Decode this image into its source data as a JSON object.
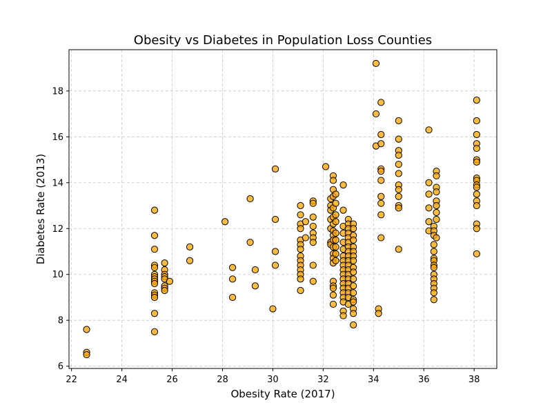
{
  "chart_data": {
    "type": "scatter",
    "title": "Obesity vs Diabetes in Population Loss Counties",
    "xlabel": "Obesity Rate (2017)",
    "ylabel": "Diabetes Rate (2013)",
    "xlim": [
      21.9,
      38.9
    ],
    "ylim": [
      5.9,
      19.8
    ],
    "xticks": [
      22,
      24,
      26,
      28,
      30,
      32,
      34,
      36,
      38
    ],
    "yticks": [
      6,
      8,
      10,
      12,
      14,
      16,
      18
    ],
    "grid": true,
    "marker_color": "#ffa500",
    "marker_edge": "#000000",
    "points": [
      [
        22.6,
        7.6
      ],
      [
        22.6,
        6.6
      ],
      [
        22.6,
        6.5
      ],
      [
        25.3,
        12.8
      ],
      [
        25.3,
        11.7
      ],
      [
        25.3,
        11.1
      ],
      [
        25.3,
        10.4
      ],
      [
        25.3,
        10.3
      ],
      [
        25.3,
        10.0
      ],
      [
        25.3,
        9.9
      ],
      [
        25.3,
        9.8
      ],
      [
        25.3,
        9.7
      ],
      [
        25.3,
        9.6
      ],
      [
        25.3,
        9.2
      ],
      [
        25.3,
        9.1
      ],
      [
        25.3,
        9.0
      ],
      [
        25.3,
        8.3
      ],
      [
        25.3,
        7.5
      ],
      [
        25.7,
        10.5
      ],
      [
        25.7,
        10.2
      ],
      [
        25.7,
        10.0
      ],
      [
        25.7,
        9.9
      ],
      [
        25.7,
        9.8
      ],
      [
        25.7,
        9.5
      ],
      [
        25.7,
        9.4
      ],
      [
        25.7,
        9.3
      ],
      [
        25.9,
        9.7
      ],
      [
        26.7,
        11.2
      ],
      [
        26.7,
        10.6
      ],
      [
        28.1,
        12.3
      ],
      [
        28.4,
        10.3
      ],
      [
        28.4,
        9.8
      ],
      [
        28.4,
        9.0
      ],
      [
        29.1,
        13.3
      ],
      [
        29.1,
        11.4
      ],
      [
        29.3,
        10.2
      ],
      [
        29.3,
        9.5
      ],
      [
        30.0,
        8.5
      ],
      [
        30.1,
        14.6
      ],
      [
        30.1,
        12.4
      ],
      [
        30.1,
        11.0
      ],
      [
        30.1,
        10.4
      ],
      [
        31.1,
        13.0
      ],
      [
        31.1,
        12.6
      ],
      [
        31.1,
        12.2
      ],
      [
        31.1,
        12.0
      ],
      [
        31.1,
        11.5
      ],
      [
        31.1,
        11.3
      ],
      [
        31.1,
        11.1
      ],
      [
        31.1,
        10.8
      ],
      [
        31.1,
        10.6
      ],
      [
        31.1,
        10.4
      ],
      [
        31.1,
        10.2
      ],
      [
        31.1,
        10.0
      ],
      [
        31.1,
        9.8
      ],
      [
        31.1,
        9.3
      ],
      [
        31.3,
        12.3
      ],
      [
        31.3,
        11.6
      ],
      [
        31.6,
        13.2
      ],
      [
        31.6,
        13.1
      ],
      [
        31.6,
        12.5
      ],
      [
        31.6,
        12.1
      ],
      [
        31.6,
        11.8
      ],
      [
        31.6,
        11.6
      ],
      [
        31.6,
        11.4
      ],
      [
        31.6,
        10.4
      ],
      [
        31.6,
        9.7
      ],
      [
        32.1,
        14.7
      ],
      [
        32.3,
        13.3
      ],
      [
        32.3,
        13.0
      ],
      [
        32.3,
        12.8
      ],
      [
        32.3,
        12.4
      ],
      [
        32.3,
        12.0
      ],
      [
        32.3,
        11.4
      ],
      [
        32.3,
        11.3
      ],
      [
        32.4,
        14.3
      ],
      [
        32.4,
        14.1
      ],
      [
        32.4,
        13.7
      ],
      [
        32.4,
        13.4
      ],
      [
        32.4,
        12.9
      ],
      [
        32.4,
        12.5
      ],
      [
        32.4,
        12.2
      ],
      [
        32.4,
        11.9
      ],
      [
        32.4,
        11.7
      ],
      [
        32.4,
        11.5
      ],
      [
        32.4,
        11.2
      ],
      [
        32.4,
        10.9
      ],
      [
        32.4,
        10.7
      ],
      [
        32.4,
        10.5
      ],
      [
        32.4,
        9.7
      ],
      [
        32.4,
        9.5
      ],
      [
        32.4,
        9.4
      ],
      [
        32.4,
        9.1
      ],
      [
        32.4,
        8.7
      ],
      [
        32.5,
        13.5
      ],
      [
        32.5,
        13.1
      ],
      [
        32.5,
        12.6
      ],
      [
        32.5,
        12.3
      ],
      [
        32.5,
        11.8
      ],
      [
        32.5,
        11.5
      ],
      [
        32.5,
        11.2
      ],
      [
        32.5,
        10.9
      ],
      [
        32.5,
        10.6
      ],
      [
        32.8,
        13.9
      ],
      [
        32.8,
        12.8
      ],
      [
        32.8,
        12.1
      ],
      [
        32.8,
        11.8
      ],
      [
        32.8,
        11.4
      ],
      [
        32.8,
        11.1
      ],
      [
        32.8,
        10.8
      ],
      [
        32.8,
        10.6
      ],
      [
        32.8,
        10.4
      ],
      [
        32.8,
        10.2
      ],
      [
        32.8,
        10.0
      ],
      [
        32.8,
        9.8
      ],
      [
        32.8,
        9.6
      ],
      [
        32.8,
        9.4
      ],
      [
        32.8,
        9.2
      ],
      [
        32.8,
        9.0
      ],
      [
        32.8,
        8.8
      ],
      [
        32.8,
        8.4
      ],
      [
        32.8,
        8.2
      ],
      [
        33.0,
        12.4
      ],
      [
        33.0,
        12.2
      ],
      [
        33.0,
        12.0
      ],
      [
        33.0,
        11.8
      ],
      [
        33.0,
        11.6
      ],
      [
        33.0,
        11.4
      ],
      [
        33.0,
        11.2
      ],
      [
        33.0,
        11.0
      ],
      [
        33.0,
        10.8
      ],
      [
        33.0,
        10.6
      ],
      [
        33.0,
        10.4
      ],
      [
        33.0,
        10.2
      ],
      [
        33.0,
        10.0
      ],
      [
        33.0,
        9.8
      ],
      [
        33.0,
        9.6
      ],
      [
        33.0,
        9.4
      ],
      [
        33.0,
        9.2
      ],
      [
        33.0,
        9.0
      ],
      [
        33.0,
        8.7
      ],
      [
        33.2,
        12.2
      ],
      [
        33.2,
        12.0
      ],
      [
        33.2,
        11.7
      ],
      [
        33.2,
        11.5
      ],
      [
        33.2,
        11.2
      ],
      [
        33.2,
        11.0
      ],
      [
        33.2,
        10.8
      ],
      [
        33.2,
        10.6
      ],
      [
        33.2,
        10.3
      ],
      [
        33.2,
        10.1
      ],
      [
        33.2,
        9.8
      ],
      [
        33.2,
        9.5
      ],
      [
        33.2,
        9.2
      ],
      [
        33.2,
        8.9
      ],
      [
        33.2,
        8.8
      ],
      [
        33.2,
        8.5
      ],
      [
        33.2,
        8.3
      ],
      [
        33.2,
        7.8
      ],
      [
        34.1,
        19.2
      ],
      [
        34.1,
        17.0
      ],
      [
        34.1,
        15.6
      ],
      [
        34.2,
        8.5
      ],
      [
        34.2,
        8.3
      ],
      [
        34.3,
        17.5
      ],
      [
        34.3,
        16.1
      ],
      [
        34.3,
        15.7
      ],
      [
        34.3,
        14.6
      ],
      [
        34.3,
        14.5
      ],
      [
        34.3,
        14.1
      ],
      [
        34.3,
        13.4
      ],
      [
        34.3,
        13.1
      ],
      [
        34.3,
        12.6
      ],
      [
        34.3,
        11.6
      ],
      [
        35.0,
        16.7
      ],
      [
        35.0,
        15.9
      ],
      [
        35.0,
        15.4
      ],
      [
        35.0,
        15.2
      ],
      [
        35.0,
        14.8
      ],
      [
        35.0,
        14.4
      ],
      [
        35.0,
        13.9
      ],
      [
        35.0,
        13.7
      ],
      [
        35.0,
        13.4
      ],
      [
        35.0,
        13.0
      ],
      [
        35.0,
        12.9
      ],
      [
        35.0,
        11.1
      ],
      [
        36.2,
        16.3
      ],
      [
        36.2,
        14.0
      ],
      [
        36.2,
        13.5
      ],
      [
        36.2,
        12.9
      ],
      [
        36.2,
        12.3
      ],
      [
        36.2,
        11.9
      ],
      [
        36.4,
        12.1
      ],
      [
        36.4,
        11.9
      ],
      [
        36.4,
        11.7
      ],
      [
        36.4,
        11.3
      ],
      [
        36.4,
        11.0
      ],
      [
        36.4,
        10.7
      ],
      [
        36.4,
        10.6
      ],
      [
        36.4,
        10.4
      ],
      [
        36.4,
        10.3
      ],
      [
        36.4,
        10.0
      ],
      [
        36.4,
        9.8
      ],
      [
        36.4,
        9.6
      ],
      [
        36.4,
        9.4
      ],
      [
        36.4,
        9.2
      ],
      [
        36.4,
        8.9
      ],
      [
        36.5,
        14.5
      ],
      [
        36.5,
        14.3
      ],
      [
        36.5,
        13.8
      ],
      [
        36.5,
        13.6
      ],
      [
        36.5,
        13.2
      ],
      [
        36.5,
        13.0
      ],
      [
        36.5,
        12.7
      ],
      [
        36.5,
        12.4
      ],
      [
        36.5,
        11.6
      ],
      [
        38.1,
        17.6
      ],
      [
        38.1,
        16.7
      ],
      [
        38.1,
        16.1
      ],
      [
        38.1,
        15.7
      ],
      [
        38.1,
        15.5
      ],
      [
        38.1,
        15.0
      ],
      [
        38.1,
        14.9
      ],
      [
        38.1,
        14.2
      ],
      [
        38.1,
        14.1
      ],
      [
        38.1,
        13.9
      ],
      [
        38.1,
        13.8
      ],
      [
        38.1,
        13.5
      ],
      [
        38.1,
        13.2
      ],
      [
        38.1,
        13.0
      ],
      [
        38.1,
        12.2
      ],
      [
        38.1,
        12.0
      ],
      [
        38.1,
        10.9
      ]
    ]
  }
}
